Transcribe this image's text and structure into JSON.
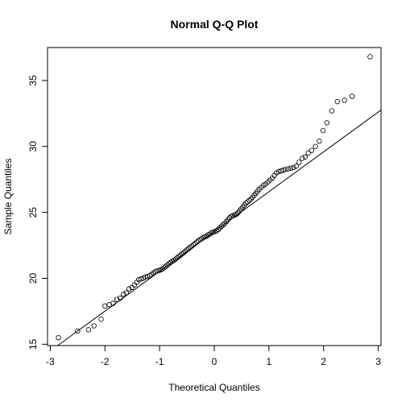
{
  "chart_data": {
    "type": "scatter",
    "title": "Normal Q-Q Plot",
    "xlabel": "Theoretical Quantiles",
    "ylabel": "Sample Quantiles",
    "xlim": [
      -3.05,
      3.05
    ],
    "ylim": [
      14.9,
      37.5
    ],
    "x_ticks": [
      -3,
      -2,
      -1,
      0,
      1,
      2,
      3
    ],
    "y_ticks": [
      15,
      20,
      25,
      30,
      35
    ],
    "grid": false,
    "legend": "none",
    "reference_line": {
      "slope": 3.02,
      "intercept": 23.55
    },
    "points": [
      [
        -2.85,
        15.5
      ],
      [
        -2.5,
        16.0
      ],
      [
        -2.3,
        16.1
      ],
      [
        -2.2,
        16.4
      ],
      [
        -2.07,
        16.9
      ],
      [
        -2.0,
        17.9
      ],
      [
        -1.92,
        18.0
      ],
      [
        -1.85,
        18.1
      ],
      [
        -1.78,
        18.4
      ],
      [
        -1.72,
        18.5
      ],
      [
        -1.66,
        18.8
      ],
      [
        -1.61,
        18.9
      ],
      [
        -1.56,
        19.2
      ],
      [
        -1.51,
        19.3
      ],
      [
        -1.46,
        19.5
      ],
      [
        -1.42,
        19.7
      ],
      [
        -1.38,
        19.9
      ],
      [
        -1.34,
        19.95
      ],
      [
        -1.3,
        20.0
      ],
      [
        -1.26,
        20.1
      ],
      [
        -1.22,
        20.15
      ],
      [
        -1.18,
        20.2
      ],
      [
        -1.15,
        20.3
      ],
      [
        -1.11,
        20.4
      ],
      [
        -1.08,
        20.5
      ],
      [
        -1.05,
        20.55
      ],
      [
        -1.01,
        20.6
      ],
      [
        -0.98,
        20.65
      ],
      [
        -0.95,
        20.7
      ],
      [
        -0.92,
        20.8
      ],
      [
        -0.89,
        20.9
      ],
      [
        -0.86,
        21.0
      ],
      [
        -0.83,
        21.1
      ],
      [
        -0.8,
        21.2
      ],
      [
        -0.77,
        21.3
      ],
      [
        -0.74,
        21.35
      ],
      [
        -0.71,
        21.45
      ],
      [
        -0.68,
        21.55
      ],
      [
        -0.65,
        21.65
      ],
      [
        -0.62,
        21.75
      ],
      [
        -0.59,
        21.85
      ],
      [
        -0.56,
        21.95
      ],
      [
        -0.53,
        22.05
      ],
      [
        -0.5,
        22.15
      ],
      [
        -0.47,
        22.25
      ],
      [
        -0.44,
        22.35
      ],
      [
        -0.41,
        22.45
      ],
      [
        -0.38,
        22.55
      ],
      [
        -0.35,
        22.65
      ],
      [
        -0.32,
        22.75
      ],
      [
        -0.29,
        22.85
      ],
      [
        -0.26,
        22.95
      ],
      [
        -0.23,
        23.0
      ],
      [
        -0.2,
        23.1
      ],
      [
        -0.17,
        23.15
      ],
      [
        -0.14,
        23.2
      ],
      [
        -0.11,
        23.3
      ],
      [
        -0.08,
        23.35
      ],
      [
        -0.05,
        23.45
      ],
      [
        -0.02,
        23.5
      ],
      [
        0.01,
        23.55
      ],
      [
        0.04,
        23.6
      ],
      [
        0.07,
        23.7
      ],
      [
        0.1,
        23.8
      ],
      [
        0.13,
        23.95
      ],
      [
        0.16,
        24.05
      ],
      [
        0.19,
        24.15
      ],
      [
        0.22,
        24.3
      ],
      [
        0.25,
        24.45
      ],
      [
        0.28,
        24.6
      ],
      [
        0.31,
        24.7
      ],
      [
        0.34,
        24.75
      ],
      [
        0.37,
        24.8
      ],
      [
        0.4,
        24.85
      ],
      [
        0.43,
        24.95
      ],
      [
        0.46,
        25.1
      ],
      [
        0.49,
        25.25
      ],
      [
        0.52,
        25.4
      ],
      [
        0.55,
        25.55
      ],
      [
        0.58,
        25.7
      ],
      [
        0.61,
        25.8
      ],
      [
        0.64,
        25.9
      ],
      [
        0.67,
        26.0
      ],
      [
        0.7,
        26.15
      ],
      [
        0.73,
        26.3
      ],
      [
        0.76,
        26.45
      ],
      [
        0.79,
        26.6
      ],
      [
        0.82,
        26.75
      ],
      [
        0.86,
        26.9
      ],
      [
        0.9,
        27.05
      ],
      [
        0.94,
        27.15
      ],
      [
        0.98,
        27.3
      ],
      [
        1.02,
        27.45
      ],
      [
        1.06,
        27.6
      ],
      [
        1.1,
        27.8
      ],
      [
        1.14,
        28.0
      ],
      [
        1.18,
        28.1
      ],
      [
        1.22,
        28.15
      ],
      [
        1.26,
        28.2
      ],
      [
        1.3,
        28.25
      ],
      [
        1.35,
        28.3
      ],
      [
        1.4,
        28.35
      ],
      [
        1.45,
        28.4
      ],
      [
        1.5,
        28.5
      ],
      [
        1.55,
        28.8
      ],
      [
        1.61,
        29.1
      ],
      [
        1.66,
        29.2
      ],
      [
        1.72,
        29.5
      ],
      [
        1.78,
        29.7
      ],
      [
        1.85,
        30.0
      ],
      [
        1.92,
        30.4
      ],
      [
        1.99,
        31.2
      ],
      [
        2.06,
        31.8
      ],
      [
        2.15,
        32.7
      ],
      [
        2.25,
        33.4
      ],
      [
        2.38,
        33.5
      ],
      [
        2.52,
        33.8
      ],
      [
        2.85,
        36.8
      ]
    ]
  }
}
